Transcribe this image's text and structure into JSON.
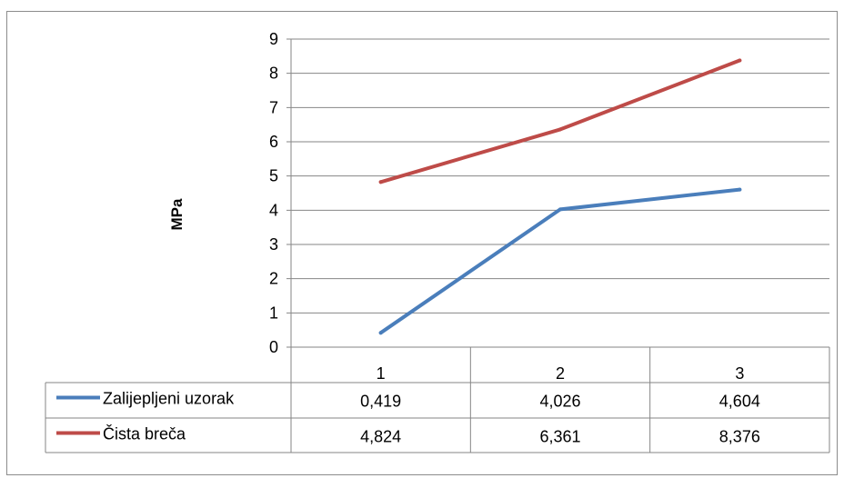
{
  "chart_data": {
    "type": "line",
    "title": "",
    "xlabel": "",
    "ylabel": "MPa",
    "ylim": [
      0,
      9
    ],
    "y_ticks": [
      "0",
      "1",
      "2",
      "3",
      "4",
      "5",
      "6",
      "7",
      "8",
      "9"
    ],
    "categories": [
      "1",
      "2",
      "3"
    ],
    "grid": true,
    "legend": "data-table",
    "series": [
      {
        "name": "Zalijepljeni uzorak",
        "color": "#4a7ebb",
        "values": [
          0.419,
          4.026,
          4.604
        ],
        "labels": [
          "0,419",
          "4,026",
          "4,604"
        ]
      },
      {
        "name": "Čista breča",
        "color": "#be4b48",
        "values": [
          4.824,
          6.361,
          8.376
        ],
        "labels": [
          "4,824",
          "6,361",
          "8,376"
        ]
      }
    ]
  }
}
